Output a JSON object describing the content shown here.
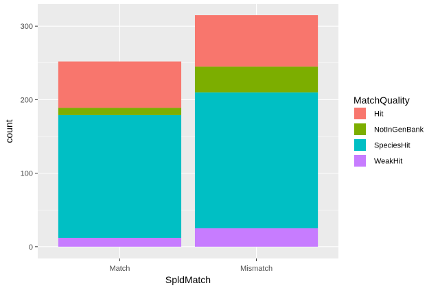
{
  "chart_data": {
    "type": "bar",
    "stacked": true,
    "categories": [
      "Match",
      "Mismatch"
    ],
    "series": [
      {
        "name": "WeakHit",
        "values": [
          12,
          25
        ],
        "color": "#C77CFF"
      },
      {
        "name": "SpeciesHit",
        "values": [
          167,
          185
        ],
        "color": "#00BFC4"
      },
      {
        "name": "NotInGenBank",
        "values": [
          10,
          35
        ],
        "color": "#7CAE00"
      },
      {
        "name": "Hit",
        "values": [
          63,
          70
        ],
        "color": "#F8766D"
      }
    ],
    "xlabel": "SpldMatch",
    "ylabel": "count",
    "ylim": [
      -16,
      330
    ],
    "yticks": [
      0,
      100,
      200,
      300
    ],
    "grid": true,
    "legend": {
      "title": "MatchQuality",
      "placement": "right",
      "entries": [
        {
          "label": "Hit",
          "color": "#F8766D"
        },
        {
          "label": "NotInGenBank",
          "color": "#7CAE00"
        },
        {
          "label": "SpeciesHit",
          "color": "#00BFC4"
        },
        {
          "label": "WeakHit",
          "color": "#C77CFF"
        }
      ]
    },
    "panel_color": "#EBEBEB",
    "grid_color": "#FFFFFF"
  }
}
